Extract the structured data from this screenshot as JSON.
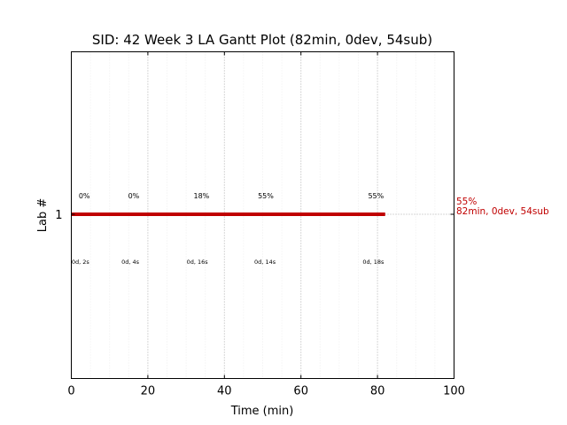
{
  "chart_data": {
    "type": "gantt",
    "title": "SID: 42 Week 3 LA Gantt Plot (82min, 0dev, 54sub)",
    "xlabel": "Time (min)",
    "ylabel": "Lab #",
    "xlim": [
      0,
      100
    ],
    "xticks": [
      0,
      20,
      40,
      60,
      80,
      100
    ],
    "yticks": [
      1
    ],
    "grid": {
      "major_x": true,
      "minor_x": true,
      "y_at_bar": true
    },
    "bar": {
      "lab": 1,
      "start": 0,
      "end": 82,
      "color": "#c00000"
    },
    "top_annotations": [
      {
        "x": 3.4,
        "text": "0%"
      },
      {
        "x": 16.3,
        "text": "0%"
      },
      {
        "x": 34.0,
        "text": "18%"
      },
      {
        "x": 50.8,
        "text": "55%"
      },
      {
        "x": 79.6,
        "text": "55%"
      }
    ],
    "bottom_annotations": [
      {
        "x": 2.4,
        "text": "0d, 2s"
      },
      {
        "x": 15.4,
        "text": "0d, 4s"
      },
      {
        "x": 32.9,
        "text": "0d, 16s"
      },
      {
        "x": 50.6,
        "text": "0d, 14s"
      },
      {
        "x": 78.9,
        "text": "0d, 18s"
      }
    ],
    "summary": {
      "line1": "55%",
      "line2": "82min, 0dev, 54sub",
      "color": "#c00000"
    }
  }
}
